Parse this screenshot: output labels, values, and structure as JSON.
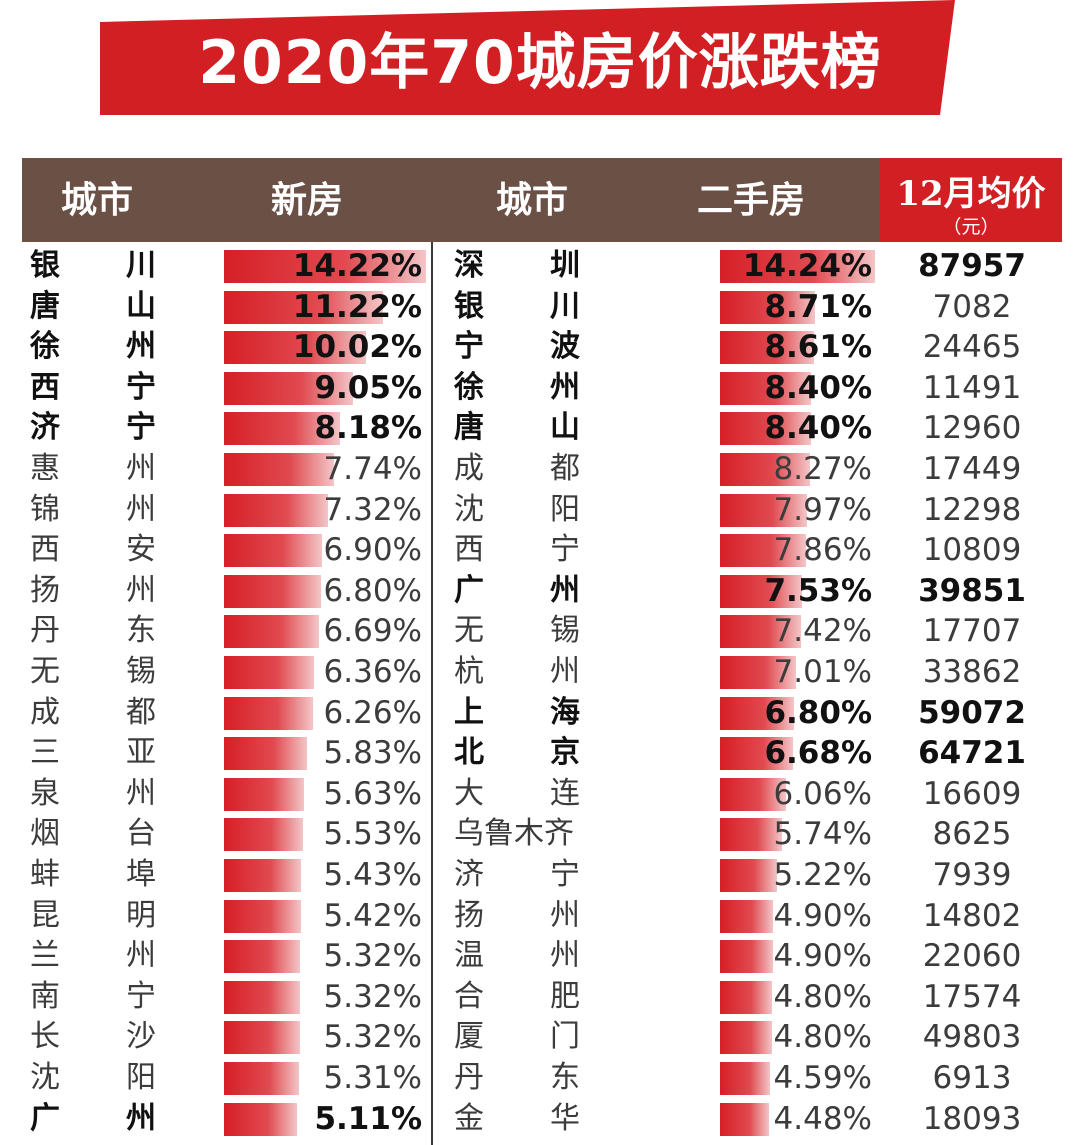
{
  "title": "2020年70城房价涨跌榜",
  "colors": {
    "banner": "#d21f24",
    "header": "#6b5046",
    "price_header": "#d21f24",
    "bar": "#d61f26"
  },
  "headers": {
    "city_new": "城市",
    "new": "新房",
    "city_second": "城市",
    "second": "二手房",
    "price": "12月均价",
    "price_unit": "（元）"
  },
  "chart_data": {
    "type": "table",
    "title": "2020年70城房价涨跌榜",
    "new_house": {
      "header": "新房",
      "cities": [
        "银川",
        "唐山",
        "徐州",
        "西宁",
        "济宁",
        "惠州",
        "锦州",
        "西安",
        "扬州",
        "丹东",
        "无锡",
        "成都",
        "三亚",
        "泉州",
        "烟台",
        "蚌埠",
        "昆明",
        "兰州",
        "南宁",
        "长沙",
        "沈阳",
        "广州"
      ],
      "values": [
        14.22,
        11.22,
        10.02,
        9.05,
        8.18,
        7.74,
        7.32,
        6.9,
        6.8,
        6.69,
        6.36,
        6.26,
        5.83,
        5.63,
        5.53,
        5.43,
        5.42,
        5.32,
        5.32,
        5.32,
        5.31,
        5.11
      ],
      "labels": [
        "14.22%",
        "11.22%",
        "10.02%",
        "9.05%",
        "8.18%",
        "7.74%",
        "7.32%",
        "6.90%",
        "6.80%",
        "6.69%",
        "6.36%",
        "6.26%",
        "5.83%",
        "5.63%",
        "5.53%",
        "5.43%",
        "5.42%",
        "5.32%",
        "5.32%",
        "5.32%",
        "5.31%",
        "5.11%"
      ],
      "bold": [
        true,
        true,
        true,
        true,
        true,
        false,
        false,
        false,
        false,
        false,
        false,
        false,
        false,
        false,
        false,
        false,
        false,
        false,
        false,
        false,
        false,
        true
      ]
    },
    "second_hand": {
      "header": "二手房",
      "cities": [
        "深圳",
        "银川",
        "宁波",
        "徐州",
        "唐山",
        "成都",
        "沈阳",
        "西宁",
        "广州",
        "无锡",
        "杭州",
        "上海",
        "北京",
        "大连",
        "乌鲁木齐",
        "济宁",
        "扬州",
        "温州",
        "合肥",
        "厦门",
        "丹东",
        "金华"
      ],
      "values": [
        14.24,
        8.71,
        8.61,
        8.4,
        8.4,
        8.27,
        7.97,
        7.86,
        7.53,
        7.42,
        7.01,
        6.8,
        6.68,
        6.06,
        5.74,
        5.22,
        4.9,
        4.9,
        4.8,
        4.8,
        4.59,
        4.48
      ],
      "labels": [
        "14.24%",
        "8.71%",
        "8.61%",
        "8.40%",
        "8.40%",
        "8.27%",
        "7.97%",
        "7.86%",
        "7.53%",
        "7.42%",
        "7.01%",
        "6.80%",
        "6.68%",
        "6.06%",
        "5.74%",
        "5.22%",
        "4.90%",
        "4.90%",
        "4.80%",
        "4.80%",
        "4.59%",
        "4.48%"
      ],
      "bold": [
        true,
        true,
        true,
        true,
        true,
        false,
        false,
        false,
        true,
        false,
        false,
        true,
        true,
        false,
        false,
        false,
        false,
        false,
        false,
        false,
        false,
        false
      ]
    },
    "dec_avg_price": {
      "header": "12月均价",
      "unit": "（元）",
      "values": [
        "87957",
        "7082",
        "24465",
        "11491",
        "12960",
        "17449",
        "12298",
        "10809",
        "39851",
        "17707",
        "33862",
        "59072",
        "64721",
        "16609",
        "8625",
        "7939",
        "14802",
        "22060",
        "17574",
        "49803",
        "6913",
        "18093"
      ],
      "bold": [
        true,
        false,
        false,
        false,
        false,
        false,
        false,
        false,
        true,
        false,
        false,
        true,
        true,
        false,
        false,
        false,
        false,
        false,
        false,
        false,
        false,
        false
      ]
    }
  }
}
